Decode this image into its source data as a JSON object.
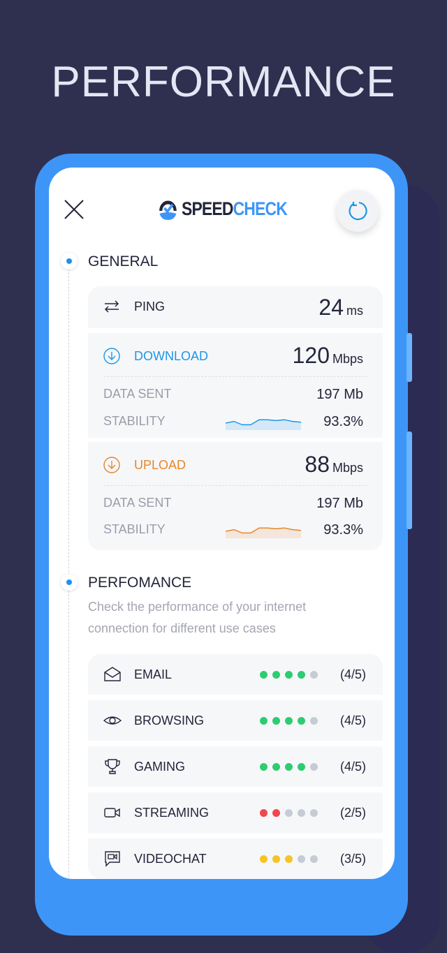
{
  "page_title": "PERFORMANCE",
  "header": {
    "logo_part1": "SPEED",
    "logo_part2": "CHECK",
    "close_icon": "close-icon",
    "refresh_icon": "refresh-icon"
  },
  "general": {
    "heading": "GENERAL",
    "ping": {
      "label": "PING",
      "value": "24",
      "unit": "ms"
    },
    "download": {
      "label": "DOWNLOAD",
      "value": "120",
      "unit": "Mbps",
      "data_sent_label": "DATA SENT",
      "data_sent": "197 Mb",
      "stability_label": "STABILITY",
      "stability": "93.3%",
      "color": "#1e96e8",
      "sparkline": [
        5,
        7,
        3,
        3,
        9,
        9,
        8,
        9,
        7,
        6
      ]
    },
    "upload": {
      "label": "UPLOAD",
      "value": "88",
      "unit": "Mbps",
      "data_sent_label": "DATA SENT",
      "data_sent": "197 Mb",
      "stability_label": "STABILITY",
      "stability": "93.3%",
      "color": "#e8862a",
      "sparkline": [
        5,
        7,
        3,
        3,
        9,
        9,
        8,
        9,
        7,
        6
      ]
    }
  },
  "performance": {
    "heading": "PERFOMANCE",
    "description": "Check the performance of your internet connection for different use cases",
    "items": [
      {
        "label": "EMAIL",
        "icon": "envelope-icon",
        "rating": 4,
        "max": 5,
        "score": "(4/5)",
        "color": "#2ecc71"
      },
      {
        "label": "BROWSING",
        "icon": "eye-icon",
        "rating": 4,
        "max": 5,
        "score": "(4/5)",
        "color": "#2ecc71"
      },
      {
        "label": "GAMING",
        "icon": "trophy-icon",
        "rating": 4,
        "max": 5,
        "score": "(4/5)",
        "color": "#2ecc71"
      },
      {
        "label": "STREAMING",
        "icon": "video-camera-icon",
        "rating": 2,
        "max": 5,
        "score": "(2/5)",
        "color": "#f0474f"
      },
      {
        "label": "VIDEOCHAT",
        "icon": "video-chat-icon",
        "rating": 3,
        "max": 5,
        "score": "(3/5)",
        "color": "#f7c325"
      }
    ],
    "empty_dot_color": "#c6cbd6"
  }
}
